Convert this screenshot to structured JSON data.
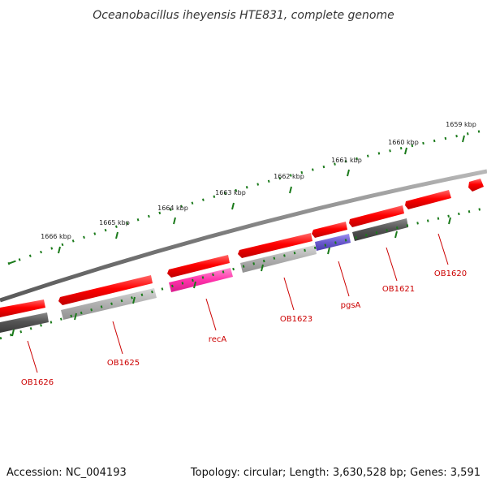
{
  "header": {
    "title": "Oceanobacillus iheyensis HTE831, complete genome"
  },
  "footer": {
    "accession": "Accession: NC_004193",
    "topology": "Topology: circular; Length: 3,630,528 bp; Genes: 3,591"
  },
  "scale_labels": [
    "1659 kbp",
    "1660 kbp",
    "1661 kbp",
    "1662 kbp",
    "1663 kbp",
    "1664 kbp",
    "1665 kbp",
    "1666 kbp"
  ],
  "gene_labels": [
    "OB1620",
    "OB1621",
    "pgsA",
    "OB1623",
    "recA",
    "OB1625",
    "OB1626"
  ],
  "colors": {
    "background": "#ffffff",
    "backbone": "#808080",
    "scale_ticks": "#1a7a1a",
    "cds_forward": "#ff0000",
    "gene_label": "#cc0000",
    "gene_dark": "#555555",
    "gene_light": "#b0b0b0",
    "gene_magenta": "#ff33aa",
    "gene_purple": "#6a5acd"
  }
}
